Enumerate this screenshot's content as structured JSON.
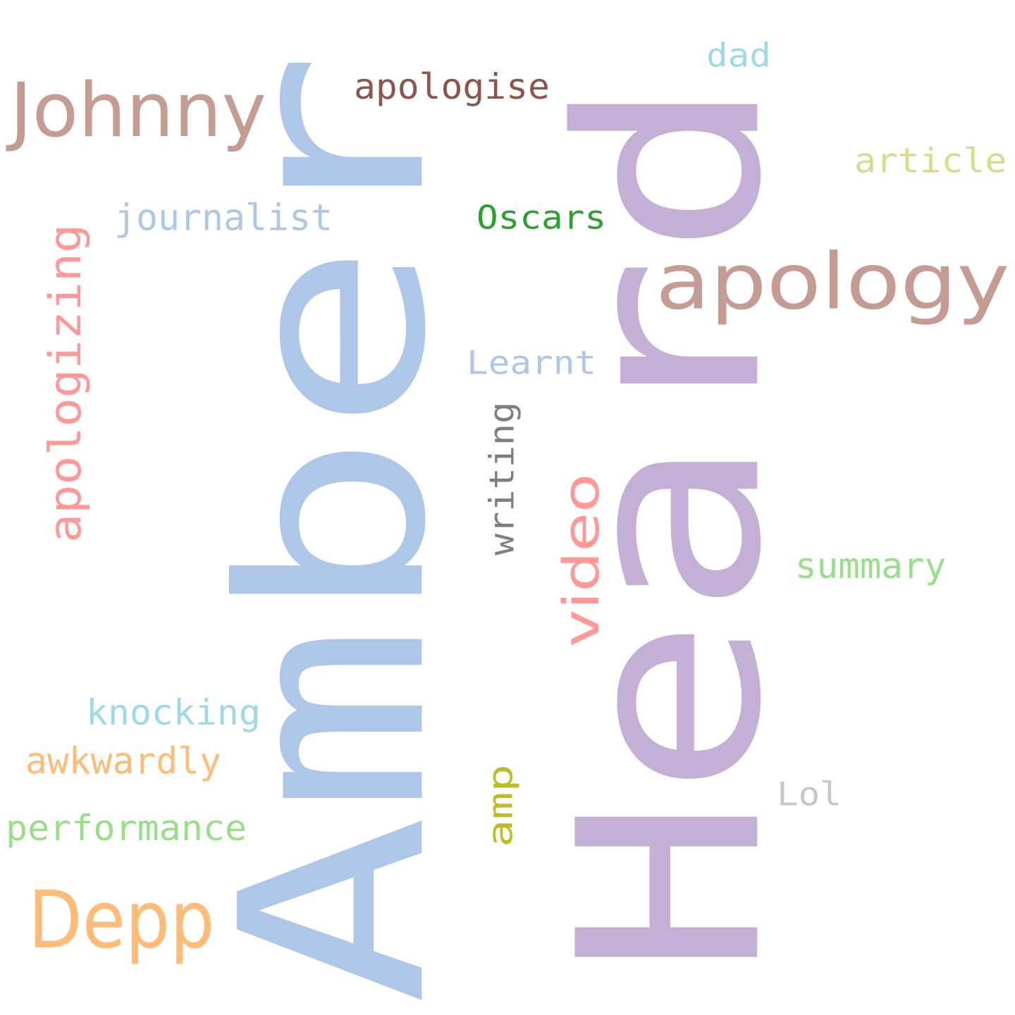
{
  "words": [
    {
      "id": "amber",
      "text": "Amber",
      "color": "#aec7e8",
      "vertical": true
    },
    {
      "id": "heard",
      "text": "Heard",
      "color": "#c5b0d5",
      "vertical": true
    },
    {
      "id": "johnny",
      "text": "Johnny",
      "color": "#c49c94",
      "vertical": false
    },
    {
      "id": "apology",
      "text": "apology",
      "color": "#c49c94",
      "vertical": false
    },
    {
      "id": "depp",
      "text": "Depp",
      "color": "#ffbb78",
      "vertical": false
    },
    {
      "id": "apologizing",
      "text": "apologizing",
      "color": "#ff9896",
      "vertical": true
    },
    {
      "id": "video",
      "text": "video",
      "color": "#ff9896",
      "vertical": true
    },
    {
      "id": "writing",
      "text": "writing",
      "color": "#7f7f7f",
      "vertical": true
    },
    {
      "id": "amp",
      "text": "amp",
      "color": "#bcbd22",
      "vertical": true
    },
    {
      "id": "apologise",
      "text": "apologise",
      "color": "#8c564b",
      "vertical": false
    },
    {
      "id": "dad",
      "text": "dad",
      "color": "#9edae5",
      "vertical": false
    },
    {
      "id": "article",
      "text": "article",
      "color": "#dbdb8d",
      "vertical": false
    },
    {
      "id": "journalist",
      "text": "journalist",
      "color": "#aec7e8",
      "vertical": false
    },
    {
      "id": "oscars",
      "text": "Oscars",
      "color": "#2ca02c",
      "vertical": false
    },
    {
      "id": "learnt",
      "text": "Learnt",
      "color": "#aec7e8",
      "vertical": false
    },
    {
      "id": "summary",
      "text": "summary",
      "color": "#98df8a",
      "vertical": false
    },
    {
      "id": "knocking",
      "text": "knocking",
      "color": "#9edae5",
      "vertical": false
    },
    {
      "id": "awkwardly",
      "text": "awkwardly",
      "color": "#ffbb78",
      "vertical": false
    },
    {
      "id": "performance",
      "text": "performance",
      "color": "#98df8a",
      "vertical": false
    },
    {
      "id": "lol",
      "text": "Lol",
      "color": "#c7c7c7",
      "vertical": false
    }
  ]
}
